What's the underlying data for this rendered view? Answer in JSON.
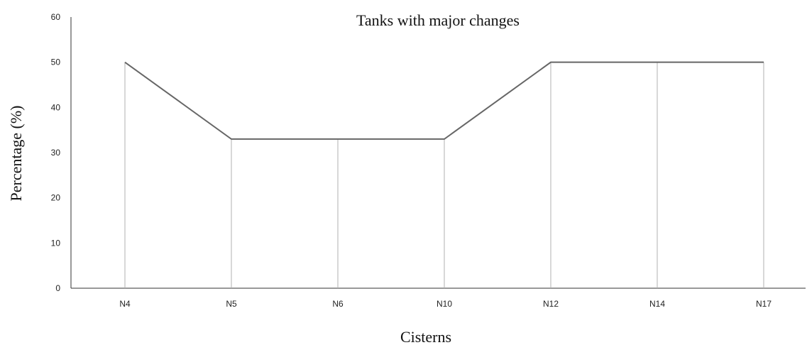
{
  "chart_data": {
    "type": "line",
    "title": "Tanks with major changes",
    "xlabel": "Cisterns",
    "ylabel": "Percentage (%)",
    "categories": [
      "N4",
      "N5",
      "N6",
      "N10",
      "N12",
      "N14",
      "N17"
    ],
    "series": [
      {
        "values": [
          50,
          33,
          33,
          33,
          50,
          50,
          50
        ]
      }
    ],
    "ylim": [
      0,
      60
    ],
    "yticks": [
      "0",
      "10",
      "20",
      "30",
      "40",
      "50",
      "60"
    ],
    "grid": false,
    "drop_lines": true,
    "line_color": "#666666",
    "drop_line_color": "#b0b0b0"
  }
}
